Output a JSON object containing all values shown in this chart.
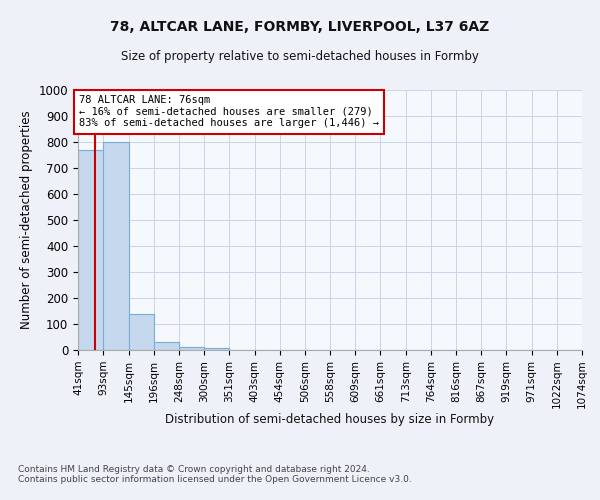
{
  "title_line1": "78, ALTCAR LANE, FORMBY, LIVERPOOL, L37 6AZ",
  "title_line2": "Size of property relative to semi-detached houses in Formby",
  "xlabel": "Distribution of semi-detached houses by size in Formby",
  "ylabel": "Number of semi-detached properties",
  "footnote": "Contains HM Land Registry data © Crown copyright and database right 2024.\nContains public sector information licensed under the Open Government Licence v3.0.",
  "bin_labels": [
    "41sqm",
    "93sqm",
    "145sqm",
    "196sqm",
    "248sqm",
    "300sqm",
    "351sqm",
    "403sqm",
    "454sqm",
    "506sqm",
    "558sqm",
    "609sqm",
    "661sqm",
    "713sqm",
    "764sqm",
    "816sqm",
    "867sqm",
    "919sqm",
    "971sqm",
    "1022sqm",
    "1074sqm"
  ],
  "bin_edges": [
    41,
    93,
    145,
    196,
    248,
    300,
    351,
    403,
    454,
    506,
    558,
    609,
    661,
    713,
    764,
    816,
    867,
    919,
    971,
    1022,
    1074
  ],
  "bar_values": [
    770,
    800,
    140,
    30,
    12,
    6,
    0,
    0,
    0,
    0,
    0,
    0,
    0,
    0,
    0,
    0,
    0,
    0,
    0,
    0
  ],
  "bar_color": "#c5d8ed",
  "bar_edge_color": "#7aadd4",
  "subject_value": 76,
  "subject_label": "78 ALTCAR LANE: 76sqm",
  "pct_smaller": 16,
  "n_smaller": 279,
  "pct_larger": 83,
  "n_larger": 1446,
  "vline_color": "#cc0000",
  "annotation_box_color": "#cc0000",
  "ylim": [
    0,
    1000
  ],
  "yticks": [
    0,
    100,
    200,
    300,
    400,
    500,
    600,
    700,
    800,
    900,
    1000
  ],
  "bg_color": "#eef2f8",
  "plot_bg_color": "#f5f8fd",
  "grid_color": "#c8d4e8"
}
